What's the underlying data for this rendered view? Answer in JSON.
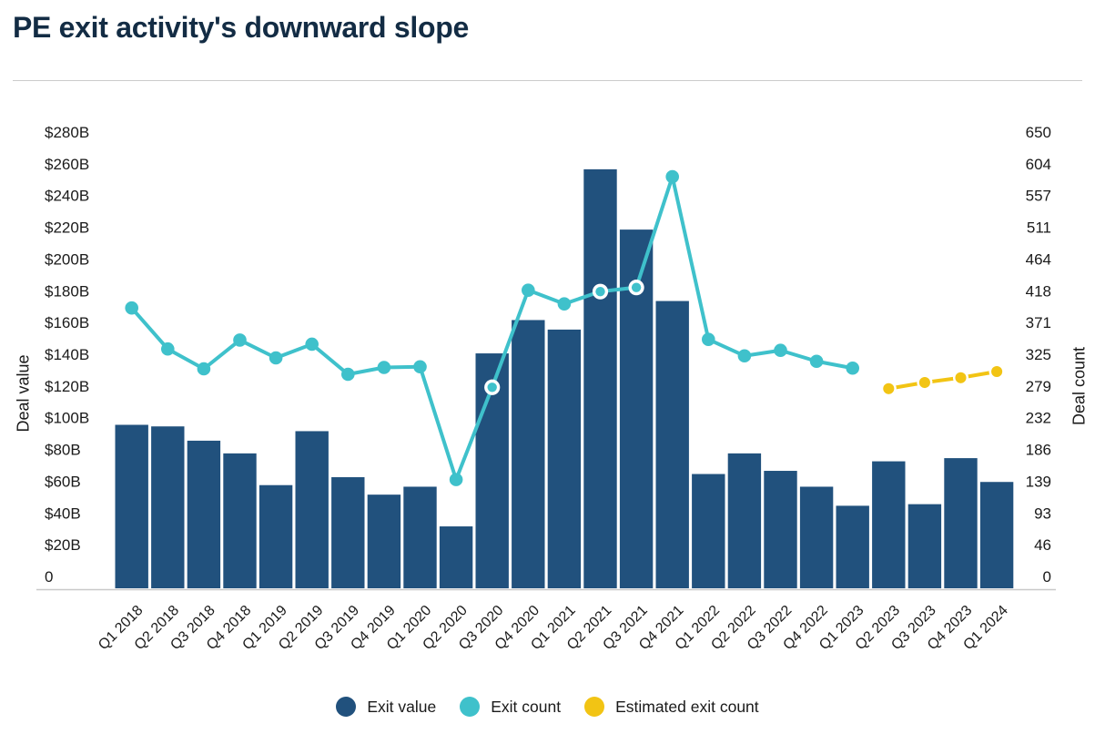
{
  "header": {
    "title": "PE exit activity's downward slope"
  },
  "colors": {
    "exit_value_navy": "#21517d",
    "exit_count_teal": "#3fc1cb",
    "estimated_exit_count_yellow": "#f2c414",
    "title_text": "#132c44",
    "axis_text": "#1a1a1a",
    "divider_gray": "#cccccc",
    "baseline_gray": "#c9c9c9"
  },
  "chart_data": {
    "type": "bar-line-combo",
    "title": "PE exit activity's downward slope",
    "grid": "off",
    "legend_position": "bottom-center",
    "categories": [
      "Q1 2018",
      "Q2 2018",
      "Q3 2018",
      "Q4 2018",
      "Q1 2019",
      "Q2 2019",
      "Q3 2019",
      "Q4 2019",
      "Q1 2020",
      "Q2 2020",
      "Q3 2020",
      "Q4 2020",
      "Q1 2021",
      "Q2 2021",
      "Q3 2021",
      "Q4 2021",
      "Q1 2022",
      "Q2 2022",
      "Q3 2022",
      "Q4 2022",
      "Q1 2023",
      "Q2 2023",
      "Q3 2023",
      "Q4 2023",
      "Q1 2024"
    ],
    "series": [
      {
        "name": "Exit value",
        "type": "bar",
        "axis": "left",
        "unit": "USD billions",
        "color": "#21517d",
        "values": [
          103,
          102,
          93,
          85,
          65,
          99,
          70,
          59,
          64,
          39,
          148,
          169,
          163,
          264,
          226,
          181,
          72,
          85,
          74,
          64,
          52,
          80,
          53,
          82,
          67
        ]
      },
      {
        "name": "Exit count",
        "type": "line",
        "axis": "right",
        "color": "#3fc1cb",
        "values": [
          410,
          350,
          321,
          363,
          337,
          357,
          313,
          323,
          324,
          159,
          294,
          436,
          416,
          434,
          440,
          602,
          364,
          340,
          348,
          332,
          322,
          null,
          null,
          null,
          null
        ],
        "highlighted_markers": [
          "Q3 2020",
          "Q2 2021",
          "Q3 2021"
        ]
      },
      {
        "name": "Estimated exit count",
        "type": "line",
        "axis": "right",
        "color": "#f2c414",
        "values": [
          null,
          null,
          null,
          null,
          null,
          null,
          null,
          null,
          null,
          null,
          null,
          null,
          null,
          null,
          null,
          null,
          null,
          null,
          null,
          null,
          null,
          292,
          301,
          308,
          317
        ]
      }
    ],
    "left_axis": {
      "label": "Deal value",
      "range": [
        0,
        280
      ],
      "tick_labels_bottom_up": [
        "0",
        "$20B",
        "$40B",
        "$60B",
        "$80B",
        "$100B",
        "$120B",
        "$140B",
        "$160B",
        "$180B",
        "$200B",
        "$220B",
        "$240B",
        "$260B",
        "$280B"
      ]
    },
    "right_axis": {
      "label": "Deal count",
      "range": [
        0,
        650
      ],
      "tick_labels_bottom_up": [
        "0",
        "46",
        "93",
        "139",
        "186",
        "232",
        "279",
        "325",
        "371",
        "418",
        "464",
        "511",
        "557",
        "604",
        "650"
      ]
    },
    "legend": [
      {
        "label": "Exit value",
        "color": "#21517d"
      },
      {
        "label": "Exit count",
        "color": "#3fc1cb"
      },
      {
        "label": "Estimated exit count",
        "color": "#f2c414"
      }
    ]
  }
}
